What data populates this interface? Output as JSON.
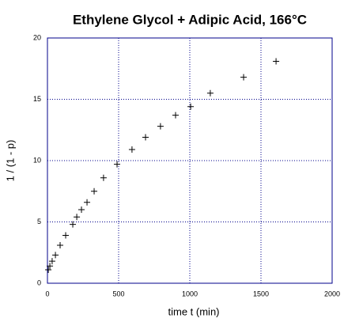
{
  "chart_data": {
    "type": "scatter",
    "title": "Ethylene Glycol + Adipic Acid, 166°C",
    "x_label": "time t (min)",
    "y_label": "1 / (1 - p)",
    "x": [
      6,
      17,
      33,
      56,
      89,
      128,
      178,
      206,
      239,
      278,
      328,
      394,
      489,
      594,
      689,
      794,
      900,
      1006,
      1144,
      1378,
      1606
    ],
    "values": [
      1.1,
      1.4,
      1.8,
      2.3,
      3.1,
      3.9,
      4.8,
      5.4,
      6.0,
      6.6,
      7.5,
      8.6,
      9.7,
      10.9,
      11.9,
      12.8,
      13.7,
      14.4,
      15.5,
      16.8,
      18.1
    ],
    "color": "#000000",
    "xlim": [
      0,
      2000
    ],
    "xticks": [
      0,
      500,
      1000,
      1500,
      2000
    ],
    "ylim": [
      0,
      20
    ],
    "yticks": [
      0,
      5,
      10,
      15,
      20
    ],
    "grid": true
  }
}
